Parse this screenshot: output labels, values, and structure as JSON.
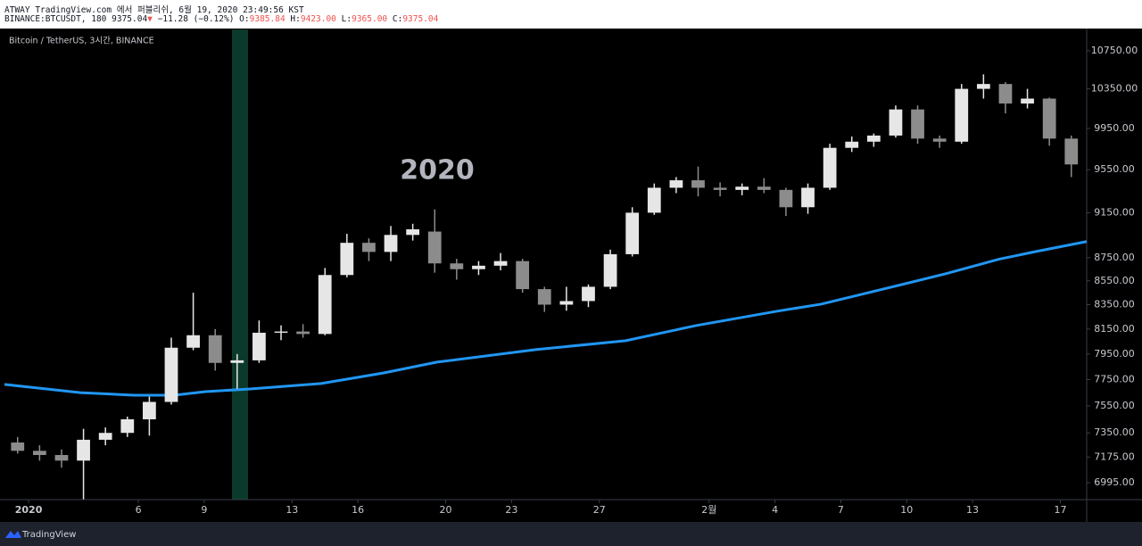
{
  "header": {
    "line1": "ATWAY TradingView.com 에서 퍼블리쉬, 6월 19, 2020 23:49:56 KST",
    "symbol": "BINANCE:BTCUSDT, 180",
    "last": "9375.04",
    "arrow": "▼",
    "change": "−11.28 (−0.12%)",
    "o_label": "O:",
    "o": "9385.84",
    "h_label": "H:",
    "h": "9423.00",
    "l_label": "L:",
    "l": "9365.00",
    "c_label": "C:",
    "c": "9375.04"
  },
  "footer": {
    "brand": "TradingView"
  },
  "chart_data": {
    "type": "candlestick",
    "title": "Bitcoin / TetherUS, 3시간, BINANCE",
    "watermark": "2020",
    "log_scale": true,
    "grid": false,
    "up_color": "#e6e6e6",
    "down_color": "#8c8c8c",
    "x": [
      -0.5,
      0.5,
      1.5,
      2.5,
      3.5,
      4.5,
      5.5,
      6.5,
      7.5,
      8.5,
      9.5,
      10.5,
      11.5,
      12.5,
      13.5,
      14.5,
      15.5,
      16.5,
      17.5,
      18.5,
      19.5,
      20.5,
      21.5,
      22.5,
      23.5,
      24.5,
      25.5,
      26.5,
      27.5,
      28.5,
      29.5,
      30.5,
      31.5,
      32.5,
      33.5,
      34.5,
      35.5,
      36.5,
      37.5,
      38.5,
      39.5,
      40.5,
      41.5,
      42.5,
      43.5,
      44.5,
      45.5,
      46.5,
      47.5
    ],
    "open": [
      7280,
      7220,
      7190,
      7150,
      7300,
      7350,
      7450,
      7580,
      8000,
      8100,
      7880,
      7900,
      8120,
      8130,
      8110,
      8600,
      8880,
      8800,
      8950,
      8980,
      8700,
      8650,
      8680,
      8720,
      8480,
      8350,
      8380,
      8500,
      8780,
      9150,
      9380,
      9450,
      9380,
      9360,
      9390,
      9360,
      9200,
      9380,
      9760,
      9820,
      9880,
      10140,
      9850,
      9820,
      10350,
      10400,
      10200,
      10250,
      9850
    ],
    "high": [
      7320,
      7260,
      7230,
      7380,
      7390,
      7470,
      7620,
      8080,
      8450,
      8150,
      7950,
      8220,
      8180,
      8190,
      8660,
      8960,
      8920,
      9030,
      9050,
      9180,
      8740,
      8720,
      8790,
      8740,
      8500,
      8500,
      8520,
      8820,
      9200,
      9420,
      9480,
      9580,
      9430,
      9420,
      9470,
      9380,
      9420,
      9800,
      9870,
      9900,
      10180,
      10180,
      9880,
      10400,
      10500,
      10420,
      10350,
      10260,
      9880
    ],
    "low": [
      7200,
      7150,
      7100,
      6880,
      7260,
      7320,
      7330,
      7560,
      7980,
      7820,
      7680,
      7880,
      8060,
      8080,
      8100,
      8580,
      8720,
      8720,
      8900,
      8620,
      8560,
      8600,
      8640,
      8450,
      8290,
      8300,
      8330,
      8480,
      8760,
      9130,
      9330,
      9300,
      9300,
      9310,
      9330,
      9120,
      9140,
      9360,
      9720,
      9770,
      9860,
      9800,
      9760,
      9800,
      10250,
      10100,
      10150,
      9780,
      9480
    ],
    "close": [
      7220,
      7190,
      7150,
      7300,
      7350,
      7450,
      7580,
      8000,
      8100,
      7880,
      7900,
      8120,
      8130,
      8110,
      8600,
      8880,
      8800,
      8950,
      9000,
      8700,
      8650,
      8680,
      8720,
      8480,
      8350,
      8380,
      8500,
      8780,
      9150,
      9380,
      9450,
      9380,
      9360,
      9390,
      9360,
      9200,
      9380,
      9760,
      9820,
      9880,
      10140,
      9850,
      9820,
      10350,
      10400,
      10200,
      10250,
      9850,
      9600
    ],
    "overlays": [
      {
        "type": "line",
        "color": "#2196f3",
        "x": [
          -1.1,
          2.36,
          4.8,
          6.63,
          8.05,
          10.08,
          13.33,
          16.18,
          18.6,
          23.1,
          27.2,
          30.4,
          34.1,
          36.1,
          39.3,
          41.8,
          44.2,
          45.9,
          48.2
        ],
        "values": [
          7713,
          7650,
          7631,
          7631,
          7658,
          7678,
          7720,
          7802,
          7886,
          7985,
          8056,
          8178,
          8296,
          8354,
          8497,
          8612,
          8736,
          8804,
          8891
        ]
      }
    ],
    "xlim": [
      -1.1,
      48.2
    ],
    "xticks": [
      {
        "value": 0,
        "label": "2020"
      },
      {
        "value": 5,
        "label": "6"
      },
      {
        "value": 8,
        "label": "9"
      },
      {
        "value": 12,
        "label": "13"
      },
      {
        "value": 15,
        "label": "16"
      },
      {
        "value": 19,
        "label": "20"
      },
      {
        "value": 22,
        "label": "23"
      },
      {
        "value": 26,
        "label": "27"
      },
      {
        "value": 31,
        "label": "2월"
      },
      {
        "value": 34,
        "label": "4"
      },
      {
        "value": 37,
        "label": "7"
      },
      {
        "value": 40,
        "label": "10"
      },
      {
        "value": 43,
        "label": "13"
      },
      {
        "value": 47,
        "label": "17"
      }
    ],
    "ylim": [
      6878,
      10980
    ],
    "yticks": [
      {
        "value": 6995,
        "label": "6995.00"
      },
      {
        "value": 7175,
        "label": "7175.00"
      },
      {
        "value": 7350,
        "label": "7350.00"
      },
      {
        "value": 7550,
        "label": "7550.00"
      },
      {
        "value": 7750,
        "label": "7750.00"
      },
      {
        "value": 7950,
        "label": "7950.00"
      },
      {
        "value": 8150,
        "label": "8150.00"
      },
      {
        "value": 8350,
        "label": "8350.00"
      },
      {
        "value": 8550,
        "label": "8550.00"
      },
      {
        "value": 8750,
        "label": "8750.00"
      },
      {
        "value": 9150,
        "label": "9150.00"
      },
      {
        "value": 9550,
        "label": "9550.00"
      },
      {
        "value": 9950,
        "label": "9950.00"
      },
      {
        "value": 10350,
        "label": "10350.00"
      },
      {
        "value": 10750,
        "label": "10750.00"
      }
    ]
  }
}
